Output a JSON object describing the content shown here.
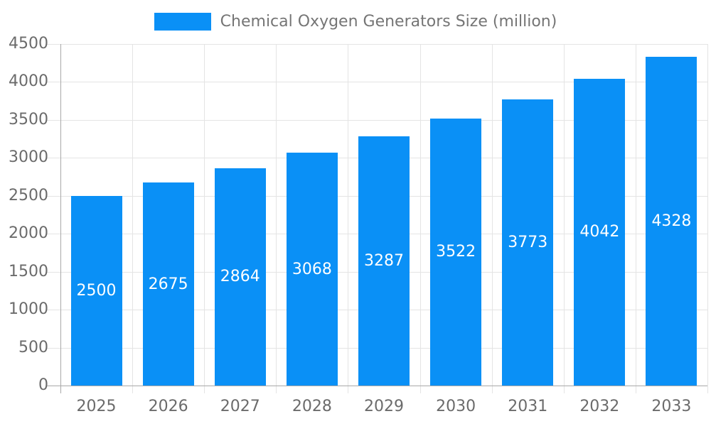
{
  "legend": {
    "label": "Chemical Oxygen Generators Size (million)"
  },
  "colors": {
    "bar": "#0a90f6",
    "value_label": "#ffffff",
    "axis_text": "#6b6b6b",
    "legend_text": "#757575",
    "gridline": "#e4e4e4",
    "axis_line": "#a9a9a9",
    "background": "#ffffff"
  },
  "chart_data": {
    "type": "bar",
    "title": "Chemical Oxygen Generators Size (million)",
    "legend_position": "top",
    "categories": [
      "2025",
      "2026",
      "2027",
      "2028",
      "2029",
      "2030",
      "2031",
      "2032",
      "2033"
    ],
    "series": [
      {
        "name": "Chemical Oxygen Generators Size (million)",
        "values": [
          2500,
          2675,
          2864,
          3068,
          3287,
          3522,
          3773,
          4042,
          4328
        ]
      }
    ],
    "value_labels": [
      2500,
      2675,
      2864,
      3068,
      3287,
      3522,
      3773,
      4042,
      4328
    ],
    "value_label_position": "inside-center",
    "xlabel": "",
    "ylabel": "",
    "ylim": [
      0,
      4500
    ],
    "yticks": [
      0,
      500,
      1000,
      1500,
      2000,
      2500,
      3000,
      3500,
      4000,
      4500
    ],
    "grid": true
  }
}
